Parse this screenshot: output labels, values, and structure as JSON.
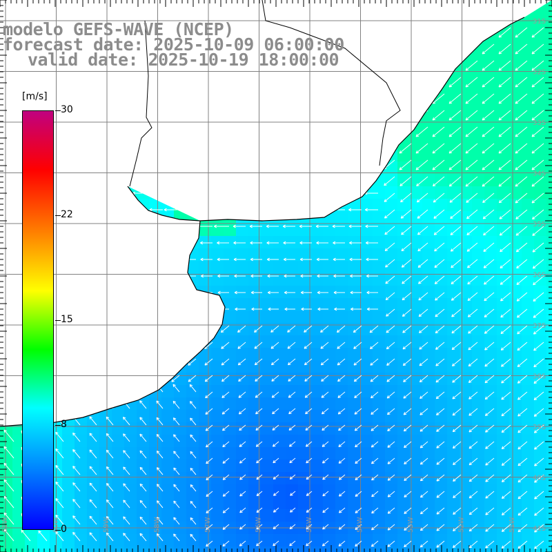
{
  "title": {
    "model": "modelo GEFS-WAVE (NCEP)",
    "forecast": "forecast date: 2025-10-09 06:00:00",
    "valid": "valid date: 2025-10-19 18:00:00"
  },
  "colorbar": {
    "unit": "[m/s]",
    "min": 0,
    "max": 30,
    "ticks": [
      {
        "label": "30",
        "value": 30
      },
      {
        "label": "22",
        "value": 22.5
      },
      {
        "label": "15",
        "value": 15
      },
      {
        "label": "8",
        "value": 7.5
      },
      {
        "label": "0",
        "value": 0
      }
    ],
    "colors": [
      "#0000ff",
      "#0080ff",
      "#00ffff",
      "#00ff00",
      "#ffff00",
      "#ff8000",
      "#ff0000",
      "#c00080"
    ]
  },
  "map": {
    "lon_range": [
      -61,
      -51
    ],
    "lat_range": [
      -41,
      -31
    ],
    "lat_labels": [
      "31S",
      "32S",
      "33S",
      "34S",
      "35S",
      "36S",
      "37S",
      "38S",
      "39S",
      "40S",
      "41S"
    ],
    "lon_labels": [
      "61W",
      "60W",
      "59W",
      "58W",
      "57W",
      "56W",
      "55W",
      "54W",
      "53W",
      "52W",
      "51W"
    ],
    "land_color": "#ffffff",
    "grid_color": "#808080",
    "coast_color": "#000000",
    "arrow_color": "#ffffff"
  }
}
